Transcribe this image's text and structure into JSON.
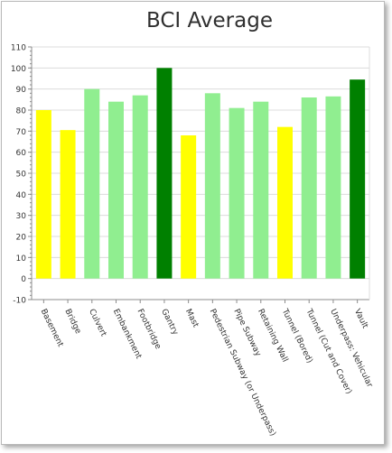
{
  "chart_data": {
    "type": "bar",
    "title": "BCI Average",
    "xlabel": "",
    "ylabel": "",
    "ylim": [
      -10,
      110
    ],
    "yticks": [
      -10,
      0,
      10,
      20,
      30,
      40,
      50,
      60,
      70,
      80,
      90,
      100,
      110
    ],
    "grid": true,
    "legend": "none",
    "categories": [
      "Basement",
      "Bridge",
      "Culvert",
      "Embankment",
      "Footbridge",
      "Gantry",
      "Mast",
      "Pedestrian Subway (or Underpass)",
      "Pipe Subway",
      "Retaining Wall",
      "Tunnel (Bored)",
      "Tunnel (Cut and Cover)",
      "Underpass: Vehicular",
      "Vault"
    ],
    "values": [
      80,
      70.5,
      90,
      84,
      87,
      100,
      68,
      88,
      81,
      84,
      72,
      86,
      86.5,
      94.5
    ],
    "bar_colors": [
      "#ffff00",
      "#ffff00",
      "#90ee90",
      "#90ee90",
      "#90ee90",
      "#008000",
      "#ffff00",
      "#90ee90",
      "#90ee90",
      "#90ee90",
      "#ffff00",
      "#90ee90",
      "#90ee90",
      "#008000"
    ]
  }
}
